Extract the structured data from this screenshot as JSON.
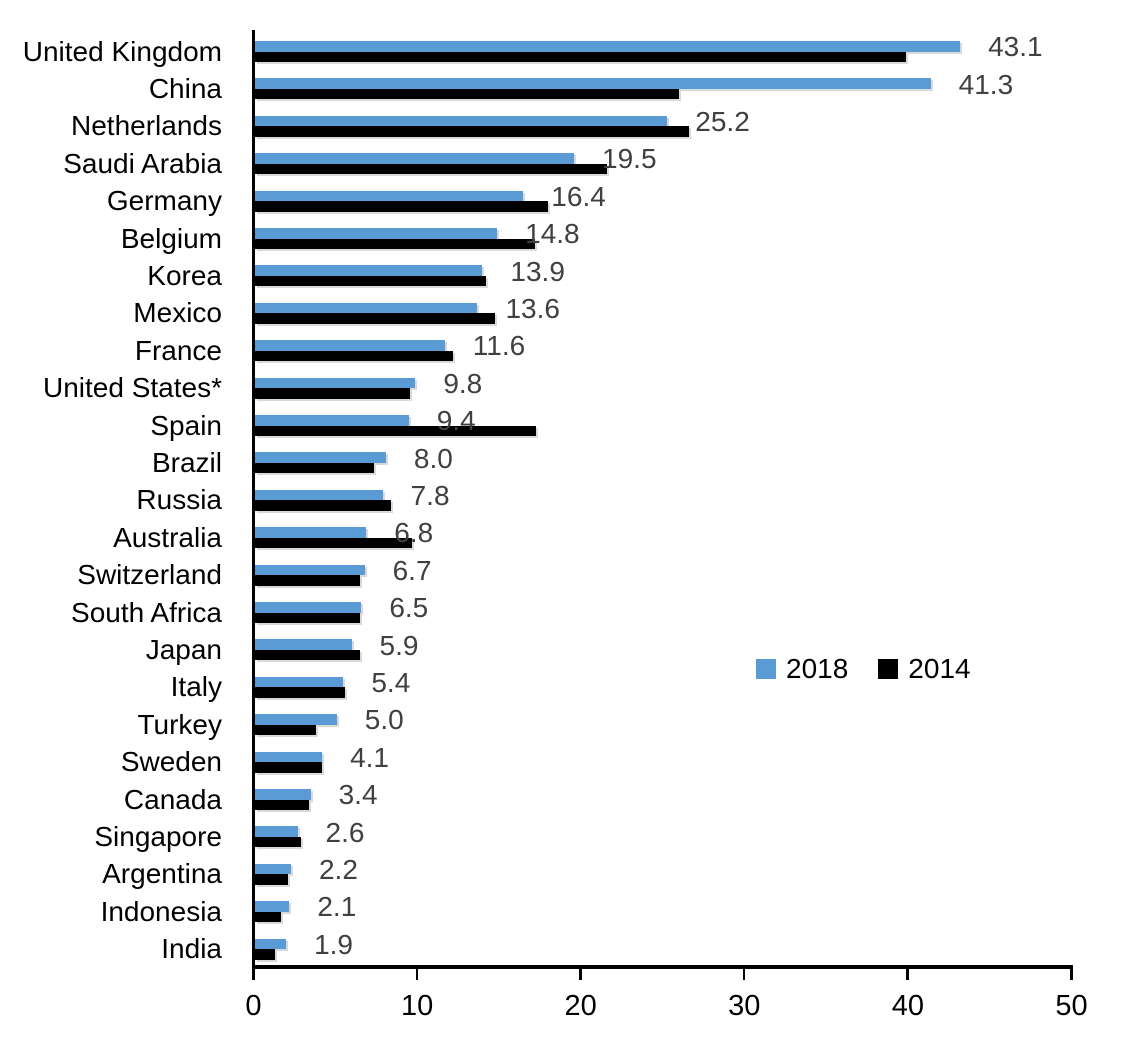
{
  "chart_data": {
    "type": "bar",
    "orientation": "horizontal",
    "title": "",
    "xlabel": "",
    "ylabel": "",
    "xlim": [
      0,
      50
    ],
    "x_ticks": [
      "0",
      "10",
      "20",
      "30",
      "40",
      "50"
    ],
    "grid": false,
    "legend_position": "middle-right",
    "categories": [
      "United Kingdom",
      "China",
      "Netherlands",
      "Saudi Arabia",
      "Germany",
      "Belgium",
      "Korea",
      "Mexico",
      "France",
      "United States*",
      "Spain",
      "Brazil",
      "Russia",
      "Australia",
      "Switzerland",
      "South Africa",
      "Japan",
      "Italy",
      "Turkey",
      "Sweden",
      "Canada",
      "Singapore",
      "Argentina",
      "Indonesia",
      "India"
    ],
    "series": [
      {
        "name": "2018",
        "color": "#5B9BD5",
        "values": [
          43.1,
          41.3,
          25.2,
          19.5,
          16.4,
          14.8,
          13.9,
          13.6,
          11.6,
          9.8,
          9.4,
          8.0,
          7.8,
          6.8,
          6.7,
          6.5,
          5.9,
          5.4,
          5.0,
          4.1,
          3.4,
          2.6,
          2.2,
          2.1,
          1.9
        ]
      },
      {
        "name": "2014",
        "color": "#000000",
        "values": [
          39.8,
          25.9,
          26.5,
          21.5,
          17.9,
          17.1,
          14.1,
          14.7,
          12.1,
          9.5,
          17.2,
          7.3,
          8.3,
          9.6,
          6.4,
          6.4,
          6.4,
          5.5,
          3.7,
          4.1,
          3.3,
          2.8,
          2.0,
          1.6,
          1.2
        ]
      }
    ],
    "data_labels": [
      "43.1",
      "41.3",
      "25.2",
      "19.5",
      "16.4",
      "14.8",
      "13.9",
      "13.6",
      "11.6",
      "9.8",
      "9.4",
      "8.0",
      "7.8",
      "6.8",
      "6.7",
      "6.5",
      "5.9",
      "5.4",
      "5.0",
      "4.1",
      "3.4",
      "2.6",
      "2.2",
      "2.1",
      "1.9"
    ],
    "data_label_series": "2018",
    "data_label_color": "#404040",
    "axis_color": "#000000",
    "legend": {
      "entries": [
        {
          "label": "2018",
          "color": "#5B9BD5"
        },
        {
          "label": "2014",
          "color": "#000000"
        }
      ]
    }
  }
}
